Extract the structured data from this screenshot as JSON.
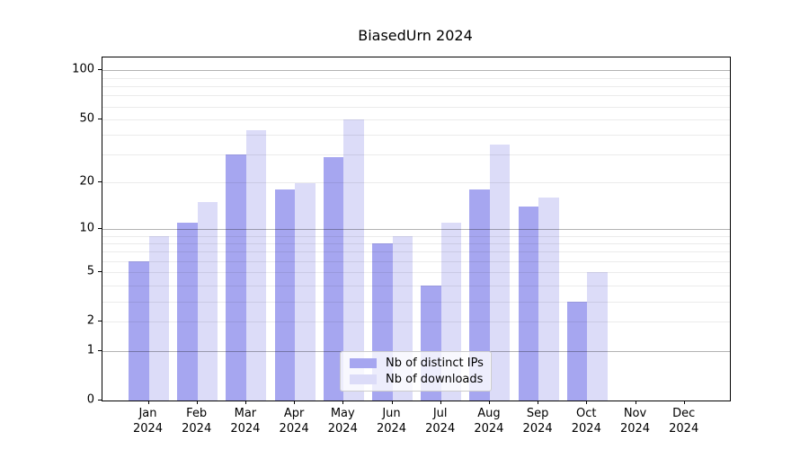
{
  "title": "BiasedUrn 2024",
  "chart_data": {
    "type": "bar",
    "title": "BiasedUrn 2024",
    "categories": [
      "Jan 2024",
      "Feb 2024",
      "Mar 2024",
      "Apr 2024",
      "May 2024",
      "Jun 2024",
      "Jul 2024",
      "Aug 2024",
      "Sep 2024",
      "Oct 2024",
      "Nov 2024",
      "Dec 2024"
    ],
    "series": [
      {
        "name": "Nb of distinct IPs",
        "color": "#a6a6f0",
        "values": [
          6,
          11,
          30,
          18,
          29,
          8,
          4,
          18,
          14,
          3,
          0,
          0
        ]
      },
      {
        "name": "Nb of downloads",
        "color": "#dcdcf8",
        "values": [
          9,
          15,
          43,
          20,
          50,
          9,
          11,
          35,
          16,
          5,
          0,
          0
        ]
      }
    ],
    "y_axis": {
      "scale": "log10(value+1)",
      "tick_values": [
        0,
        1,
        2,
        5,
        10,
        20,
        50,
        100
      ],
      "major_grid": [
        1,
        10,
        100
      ],
      "minor_grid": [
        2,
        3,
        4,
        5,
        6,
        7,
        8,
        9,
        20,
        30,
        40,
        50,
        60,
        70,
        80,
        90
      ],
      "ylim": [
        0,
        120
      ]
    },
    "legend": {
      "position": "lower center",
      "entries": [
        "Nb of distinct IPs",
        "Nb of downloads"
      ]
    },
    "grid": true
  },
  "colors": {
    "background": "#ffffff",
    "spine": "#000000",
    "major_grid": "rgba(0,0,0,0.30)",
    "minor_grid": "rgba(0,0,0,0.08)",
    "text": "#000000",
    "legend_border": "#cccccc",
    "legend_background": "rgba(255,255,255,0.8)"
  }
}
